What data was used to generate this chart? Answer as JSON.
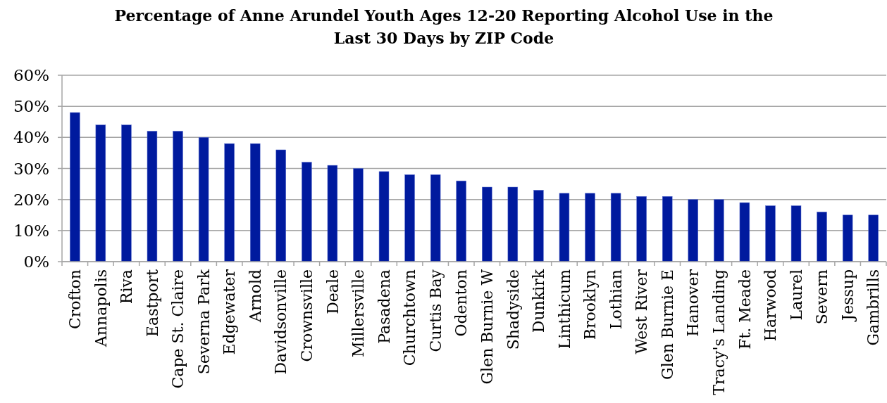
{
  "chart_data": {
    "type": "bar",
    "title": "Percentage of Anne Arundel Youth Ages 12-20 Reporting Alcohol Use in the\nLast 30 Days by ZIP Code",
    "categories": [
      "Crofton",
      "Annapolis",
      "Riva",
      "Eastport",
      "Cape St. Claire",
      "Severna Park",
      "Edgewater",
      "Arnold",
      "Davidsonville",
      "Crownsville",
      "Deale",
      "Millersville",
      "Pasadena",
      "Churchtown",
      "Curtis Bay",
      "Odenton",
      "Glen Burnie W",
      "Shadyside",
      "Dunkirk",
      "Linthicum",
      "Brooklyn",
      "Lothian",
      "West River",
      "Glen Burnie E",
      "Hanover",
      "Tracy's Landing",
      "Ft. Meade",
      "Harwood",
      "Laurel",
      "Severn",
      "Jessup",
      "Gambrills"
    ],
    "values": [
      48,
      44,
      44,
      42,
      42,
      40,
      38,
      38,
      36,
      32,
      31,
      30,
      29,
      28,
      28,
      26,
      24,
      24,
      23,
      22,
      22,
      22,
      21,
      21,
      20,
      20,
      19,
      18,
      18,
      16,
      15,
      15
    ],
    "color": "#001a9e",
    "ylim": [
      0,
      60
    ],
    "yticks": [
      {
        "value": 0,
        "label": "0%"
      },
      {
        "value": 10,
        "label": "10%"
      },
      {
        "value": 20,
        "label": "20%"
      },
      {
        "value": 30,
        "label": "30%"
      },
      {
        "value": 40,
        "label": "40%"
      },
      {
        "value": 50,
        "label": "50%"
      },
      {
        "value": 60,
        "label": "60%"
      }
    ],
    "grid": "y"
  }
}
